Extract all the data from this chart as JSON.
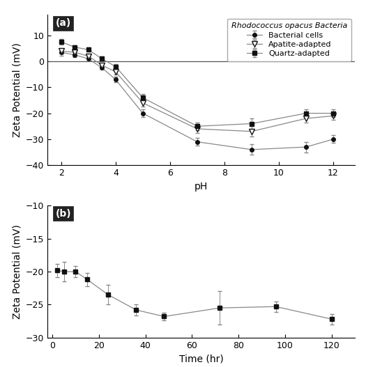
{
  "panel_a": {
    "bacterial_x": [
      2,
      2.5,
      3,
      3.5,
      4,
      5,
      7,
      9,
      11,
      12
    ],
    "bacterial_y": [
      3.5,
      2.5,
      1.0,
      -2.5,
      -7,
      -20,
      -31,
      -34,
      -33,
      -30
    ],
    "bacterial_yerr": [
      1.2,
      0.8,
      0.8,
      0.8,
      1.0,
      1.5,
      1.5,
      2.0,
      2.0,
      1.5
    ],
    "apatite_x": [
      2,
      2.5,
      3,
      3.5,
      4,
      5,
      7,
      9,
      11,
      12
    ],
    "apatite_y": [
      4.0,
      3.5,
      2.0,
      -1.5,
      -4,
      -16,
      -26,
      -27,
      -22,
      -21
    ],
    "apatite_yerr": [
      1.0,
      0.8,
      0.8,
      0.8,
      1.0,
      1.5,
      1.5,
      2.0,
      1.5,
      1.5
    ],
    "quartz_x": [
      2,
      2.5,
      3,
      3.5,
      4,
      5,
      7,
      9,
      11,
      12
    ],
    "quartz_y": [
      7.5,
      5.5,
      4.5,
      1.0,
      -2,
      -14,
      -25,
      -24,
      -20,
      -20
    ],
    "quartz_yerr": [
      1.0,
      0.8,
      0.8,
      0.8,
      1.0,
      1.5,
      1.5,
      2.0,
      1.5,
      1.5
    ],
    "xlabel": "pH",
    "ylabel": "Zeta Potential (mV)",
    "xlim": [
      1.5,
      12.8
    ],
    "ylim": [
      -40,
      18
    ],
    "yticks": [
      -40,
      -30,
      -20,
      -10,
      0,
      10
    ],
    "xticks": [
      2,
      4,
      6,
      8,
      10,
      12
    ],
    "legend_title": "Rhodococcus opacus Bacteria",
    "legend_labels": [
      "Bacterial cells",
      "Apatite-adapted",
      "Quartz-adapted"
    ]
  },
  "panel_b": {
    "x": [
      2,
      5,
      10,
      15,
      24,
      36,
      48,
      72,
      96,
      120
    ],
    "y": [
      -19.8,
      -20.0,
      -20.0,
      -21.2,
      -23.5,
      -25.8,
      -26.8,
      -25.5,
      -25.3,
      -27.2
    ],
    "yerr": [
      1.0,
      1.5,
      0.8,
      1.0,
      1.5,
      0.8,
      0.6,
      2.5,
      0.8,
      0.8
    ],
    "xlabel": "Time (hr)",
    "ylabel": "Zeta Potential (mV)",
    "xlim": [
      -2,
      130
    ],
    "ylim": [
      -30,
      -10
    ],
    "yticks": [
      -30,
      -25,
      -20,
      -15,
      -10
    ],
    "xticks": [
      0,
      20,
      40,
      60,
      80,
      100,
      120
    ]
  },
  "line_color": "#888888",
  "marker_color": "#111111",
  "panel_label_fontsize": 10,
  "axis_label_fontsize": 10,
  "tick_fontsize": 9,
  "legend_fontsize": 8,
  "fig_bg": "#ffffff",
  "ax_bg": "#ffffff"
}
